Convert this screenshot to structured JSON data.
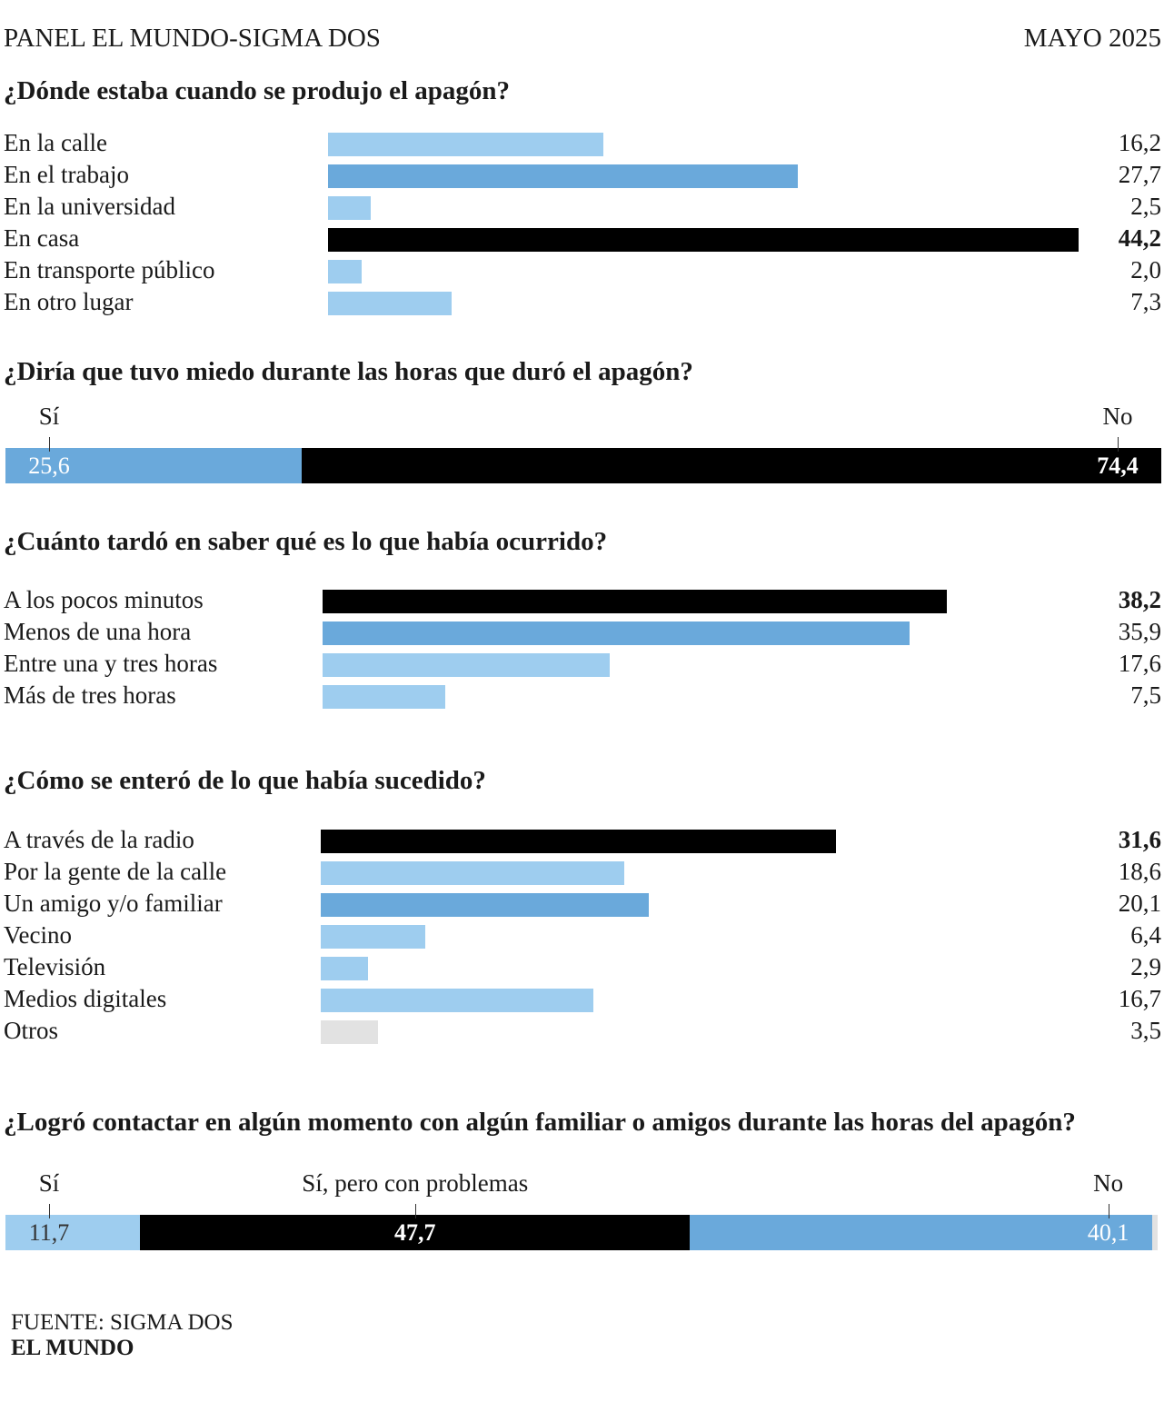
{
  "header": {
    "left": "PANEL EL MUNDO-SIGMA DOS",
    "right": "MAYO 2025"
  },
  "colors": {
    "black": "#000000",
    "mid_blue": "#6aa9db",
    "light_blue": "#9ecdef",
    "gray": "#e2e2e2"
  },
  "chart_data": [
    {
      "type": "bar",
      "title": "¿Dónde estaba cuando se produjo el apagón?",
      "categories": [
        "En la calle",
        "En el trabajo",
        "En la universidad",
        "En casa",
        "En transporte público",
        "En otro lugar"
      ],
      "values": [
        16.2,
        27.7,
        2.5,
        44.2,
        2.0,
        7.3
      ],
      "value_labels": [
        "16,2",
        "27,7",
        "2,5",
        "44,2",
        "2,0",
        "7,3"
      ],
      "colors": [
        "light_blue",
        "mid_blue",
        "light_blue",
        "black",
        "light_blue",
        "light_blue"
      ],
      "highlight_index": 3
    },
    {
      "type": "bar",
      "stacked": true,
      "title": "¿Diría que tuvo miedo durante las horas que duró el apagón?",
      "categories": [
        "Sí",
        "No"
      ],
      "values": [
        25.6,
        74.4
      ],
      "value_labels": [
        "25,6",
        "74,4"
      ],
      "colors": [
        "mid_blue",
        "black"
      ]
    },
    {
      "type": "bar",
      "title": "¿Cuánto tardó en saber qué es lo que había ocurrido?",
      "categories": [
        "A los pocos minutos",
        "Menos de una hora",
        "Entre una y tres horas",
        "Más de tres horas"
      ],
      "values": [
        38.2,
        35.9,
        17.6,
        7.5
      ],
      "value_labels": [
        "38,2",
        "35,9",
        "17,6",
        "7,5"
      ],
      "colors": [
        "black",
        "mid_blue",
        "light_blue",
        "light_blue"
      ],
      "highlight_index": 0
    },
    {
      "type": "bar",
      "title": "¿Cómo se enteró de lo que había sucedido?",
      "categories": [
        "A través de la radio",
        "Por la gente de la calle",
        "Un amigo y/o familiar",
        "Vecino",
        "Televisión",
        "Medios digitales",
        "Otros"
      ],
      "values": [
        31.6,
        18.6,
        20.1,
        6.4,
        2.9,
        16.7,
        3.5
      ],
      "value_labels": [
        "31,6",
        "18,6",
        "20,1",
        "6,4",
        "2,9",
        "16,7",
        "3,5"
      ],
      "colors": [
        "black",
        "light_blue",
        "mid_blue",
        "light_blue",
        "light_blue",
        "light_blue",
        "gray"
      ],
      "highlight_index": 0
    },
    {
      "type": "bar",
      "stacked": true,
      "title": "¿Logró contactar en algún momento con algún familiar o amigos durante las horas del apagón?",
      "categories": [
        "Sí",
        "Sí, pero con problemas",
        "No"
      ],
      "values": [
        11.7,
        47.7,
        40.1
      ],
      "value_labels": [
        "11,7",
        "47,7",
        "40,1"
      ],
      "colors": [
        "light_blue",
        "black",
        "mid_blue"
      ]
    }
  ],
  "footer": {
    "source": "FUENTE: SIGMA DOS",
    "brand": "EL MUNDO"
  }
}
